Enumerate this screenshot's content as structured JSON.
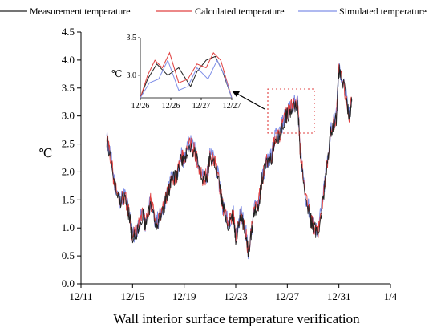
{
  "chart_data": {
    "type": "line",
    "title": "Wall interior surface temperature verification",
    "xlabel": "",
    "ylabel": "℃",
    "x_ticks": [
      "12/11",
      "12/15",
      "12/19",
      "12/23",
      "12/27",
      "12/31",
      "1/4"
    ],
    "xlim": [
      "12/11",
      "1/4"
    ],
    "y_ticks": [
      "0.0",
      "0.5",
      "1.0",
      "1.5",
      "2.0",
      "2.5",
      "3.0",
      "3.5",
      "4.0",
      "4.5"
    ],
    "ylim": [
      0,
      4.5
    ],
    "grid": false,
    "legend_placement": "top",
    "series": [
      {
        "name": "Measurement temperature",
        "color": "#222222"
      },
      {
        "name": "Calculated temperature",
        "color": "#e04040"
      },
      {
        "name": "Simulated temperature",
        "color": "#7f8fe8"
      }
    ],
    "x": [
      "12/13",
      "12/13.3",
      "12/13.6",
      "12/14",
      "12/14.4",
      "12/14.8",
      "12/15",
      "12/15.4",
      "12/15.8",
      "12/16",
      "12/16.4",
      "12/16.8",
      "12/17",
      "12/17.4",
      "12/17.8",
      "12/18",
      "12/18.4",
      "12/18.8",
      "12/19",
      "12/19.4",
      "12/19.8",
      "12/20",
      "12/20.4",
      "12/20.8",
      "12/21",
      "12/21.4",
      "12/21.8",
      "12/22",
      "12/22.4",
      "12/22.8",
      "12/23",
      "12/23.4",
      "12/23.8",
      "12/24",
      "12/24.4",
      "12/24.8",
      "12/25",
      "12/25.4",
      "12/25.8",
      "12/26",
      "12/26.4",
      "12/26.8",
      "12/27",
      "12/27.4",
      "12/27.8",
      "12/28",
      "12/28.4",
      "12/28.8",
      "12/29",
      "12/29.4",
      "12/29.8",
      "12/30",
      "12/30.4",
      "12/30.8",
      "12/31",
      "12/31.4",
      "12/31.8",
      "1/1"
    ],
    "values": [
      2.6,
      2.3,
      1.8,
      1.5,
      1.6,
      1.2,
      0.85,
      1.0,
      1.3,
      1.05,
      1.5,
      1.1,
      1.15,
      1.4,
      1.7,
      1.9,
      1.95,
      2.3,
      2.2,
      2.55,
      2.4,
      2.25,
      1.9,
      1.95,
      2.3,
      2.2,
      1.7,
      1.4,
      1.1,
      1.3,
      0.85,
      1.3,
      0.9,
      0.55,
      1.3,
      1.5,
      1.85,
      2.2,
      2.3,
      2.6,
      2.7,
      3.0,
      3.05,
      3.2,
      3.25,
      2.4,
      1.6,
      1.2,
      1.05,
      0.95,
      1.6,
      2.0,
      2.8,
      3.0,
      3.85,
      3.55,
      3.0,
      3.3
    ],
    "inset": {
      "x_ticks": [
        "12/26",
        "12/26",
        "12/27",
        "12/27"
      ],
      "y_ticks": [
        "3.0",
        "3.5"
      ],
      "ylabel": "℃",
      "ylim": [
        2.7,
        3.5
      ]
    }
  }
}
